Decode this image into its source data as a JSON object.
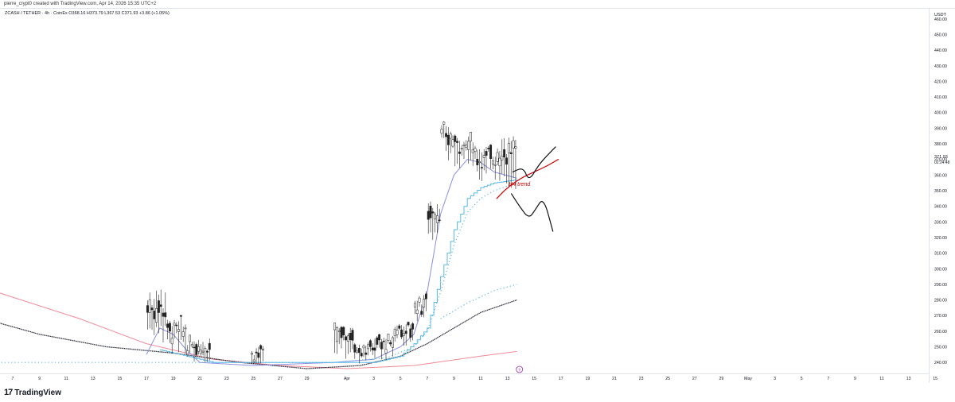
{
  "header": {
    "attribution": "pierre_crypt0 created with TradingView.com, Apr 14, 2026 15:35 UTC+2",
    "symbol_line": "ZCASH / TETHER · 4h · CoinEx  O368.16  H373.79  L367.53  C371.93  +3.86 (+1.05%)"
  },
  "price_scale": {
    "currency": "USDT",
    "current_price": "371.93",
    "countdown": "02:24:48"
  },
  "annotation": {
    "text": "H4 trend"
  },
  "event_badge": {
    "symbol": "9"
  },
  "footer": {
    "logo_text": "17",
    "brand": "TradingView"
  },
  "colors": {
    "candle": "#222222",
    "ma_fast": "#8b8fe0",
    "ma_step": "#5bb8e6",
    "ma_slow_dark": "#1c1f2e",
    "ma_long_pink": "#f08a9a",
    "drawing_black": "#111111",
    "drawing_red": "#d10000",
    "badge": "#9c27b0"
  },
  "chart_data": {
    "type": "candlestick",
    "timeframe": "4h",
    "ylim": [
      235,
      465
    ],
    "y_ticks": [
      240,
      250,
      260,
      270,
      280,
      290,
      300,
      310,
      320,
      330,
      340,
      350,
      360,
      370,
      380,
      390,
      400,
      410,
      420,
      430,
      440,
      450,
      460
    ],
    "y_tick_labels": [
      "240.00",
      "250.00",
      "260.00",
      "270.00",
      "280.00",
      "290.00",
      "300.00",
      "310.00",
      "320.00",
      "330.00",
      "340.00",
      "350.00",
      "360.00",
      "370.00",
      "380.00",
      "390.00",
      "400.00",
      "410.00",
      "420.00",
      "430.00",
      "440.00",
      "450.00",
      "460.00"
    ],
    "x_ticks": [
      "7",
      "9",
      "11",
      "13",
      "15",
      "17",
      "19",
      "21",
      "23",
      "25",
      "27",
      "29",
      "Apr",
      "3",
      "5",
      "7",
      "9",
      "11",
      "13",
      "15",
      "17",
      "19",
      "21",
      "23",
      "25",
      "27",
      "29",
      "May",
      "3",
      "5",
      "7",
      "9",
      "11",
      "13",
      "15"
    ],
    "x_tick_day_index": [
      0,
      2,
      4,
      6,
      8,
      10,
      12,
      14,
      16,
      18,
      20,
      22,
      25,
      27,
      29,
      31,
      33,
      35,
      37,
      39,
      41,
      43,
      45,
      47,
      49,
      51,
      53,
      55,
      57,
      59,
      61,
      63,
      65,
      67,
      69
    ],
    "last_data_day_index": 37.7,
    "candle_segments": [
      {
        "day_start": 10.0,
        "day_end": 11.5,
        "base": 258,
        "top": 288,
        "low": 244
      },
      {
        "day_start": 11.5,
        "day_end": 13.0,
        "base": 250,
        "top": 268,
        "low": 242
      },
      {
        "day_start": 13.0,
        "day_end": 14.8,
        "base": 243,
        "top": 255,
        "low": 238
      },
      {
        "day_start": 17.8,
        "day_end": 18.8,
        "base": 242,
        "top": 250,
        "low": 238
      },
      {
        "day_start": 24.0,
        "day_end": 25.5,
        "base": 252,
        "top": 262,
        "low": 240
      },
      {
        "day_start": 25.5,
        "day_end": 27.0,
        "base": 244,
        "top": 252,
        "low": 238
      },
      {
        "day_start": 27.0,
        "day_end": 28.5,
        "base": 246,
        "top": 256,
        "low": 240
      },
      {
        "day_start": 28.5,
        "day_end": 30.0,
        "base": 256,
        "top": 265,
        "low": 250
      },
      {
        "day_start": 30.0,
        "day_end": 31.0,
        "base": 268,
        "top": 285,
        "low": 262
      },
      {
        "day_start": 31.0,
        "day_end": 32.0,
        "base": 325,
        "top": 345,
        "low": 308
      },
      {
        "day_start": 32.0,
        "day_end": 33.0,
        "base": 372,
        "top": 392,
        "low": 360
      },
      {
        "day_start": 33.0,
        "day_end": 34.5,
        "base": 375,
        "top": 385,
        "low": 362
      },
      {
        "day_start": 34.5,
        "day_end": 36.0,
        "base": 362,
        "top": 378,
        "low": 355
      },
      {
        "day_start": 36.0,
        "day_end": 37.7,
        "base": 360,
        "top": 385,
        "low": 345
      }
    ],
    "series": [
      {
        "name": "",
        "color_key": "ma_long_pink",
        "style": "line",
        "x": [
          -3,
          5,
          10,
          15,
          20,
          25,
          30,
          35,
          37.7
        ],
        "y": [
          290,
          268,
          252,
          242,
          238,
          236,
          238,
          244,
          247
        ]
      },
      {
        "name": "",
        "color_key": "ma_slow_dark",
        "style": "line",
        "x": [
          -3,
          2,
          7,
          12,
          17,
          22,
          26,
          29,
          31,
          33,
          35,
          37.7
        ],
        "y": [
          270,
          258,
          250,
          246,
          240,
          236,
          238,
          244,
          252,
          262,
          272,
          280
        ]
      },
      {
        "name": "",
        "color_key": "ma_fast",
        "style": "line",
        "x": [
          10,
          11,
          12,
          13,
          14,
          18,
          24,
          27,
          29,
          30,
          31,
          32,
          33,
          34,
          35,
          36,
          37.7
        ],
        "y": [
          245,
          262,
          258,
          248,
          240,
          238,
          240,
          242,
          250,
          258,
          285,
          335,
          360,
          370,
          368,
          362,
          358
        ]
      },
      {
        "name": "",
        "color_key": "ma_step",
        "style": "step",
        "x": [
          11,
          13,
          15,
          24,
          27,
          29,
          30,
          31,
          32,
          33,
          34,
          35,
          36,
          37.7
        ],
        "y": [
          248,
          244,
          240,
          240,
          240,
          244,
          252,
          262,
          295,
          325,
          345,
          352,
          355,
          357
        ]
      },
      {
        "name": "",
        "color_key": "ma_step",
        "style": "dots",
        "x": [
          -3,
          -2,
          24,
          28,
          30,
          31,
          32,
          33,
          34,
          35,
          36,
          37.7
        ],
        "y": [
          244,
          240,
          240,
          243,
          250,
          260,
          285,
          315,
          336,
          345,
          350,
          355
        ]
      },
      {
        "name": "",
        "color_key": "ma_step",
        "style": "dots",
        "x": [
          32,
          34,
          36,
          37.7
        ],
        "y": [
          268,
          278,
          286,
          290
        ]
      }
    ],
    "drawings": [
      {
        "kind": "path",
        "color_key": "drawing_red",
        "x": [
          36.2,
          37,
          38,
          39,
          40,
          40.8
        ],
        "y": [
          345,
          352,
          358,
          362,
          366,
          370
        ]
      },
      {
        "kind": "path",
        "color_key": "drawing_black",
        "x": [
          37.4,
          38.2,
          38.6,
          39.3,
          39.9,
          40.6
        ],
        "y": [
          362,
          365,
          356,
          366,
          372,
          378
        ]
      },
      {
        "kind": "path",
        "color_key": "drawing_black",
        "x": [
          37.3,
          37.9,
          38.6,
          39.1,
          39.7,
          40.4
        ],
        "y": [
          348,
          340,
          332,
          338,
          346,
          324
        ]
      }
    ]
  }
}
